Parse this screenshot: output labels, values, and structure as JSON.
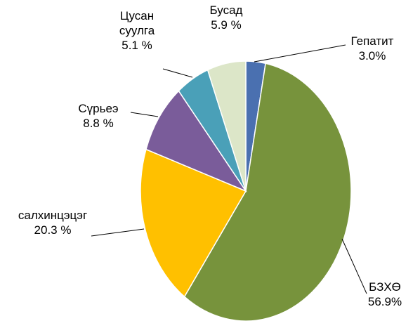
{
  "chart_data": {
    "type": "pie",
    "categories": [
      "Гепатит",
      "БЗХӨ",
      "салхинцэцэг",
      "Сүрьеэ",
      "Цусан суулга",
      "Бусад"
    ],
    "values": [
      3.0,
      56.9,
      20.3,
      8.8,
      5.1,
      5.9
    ],
    "value_labels": [
      "3.0%",
      "56.9%",
      "20.3 %",
      "8.8 %",
      "5.1 %",
      "5.9 %"
    ],
    "colors": [
      "#4a70b0",
      "#77933c",
      "#ffc000",
      "#7a5c9a",
      "#4aa0b8",
      "#dce6c8"
    ]
  }
}
